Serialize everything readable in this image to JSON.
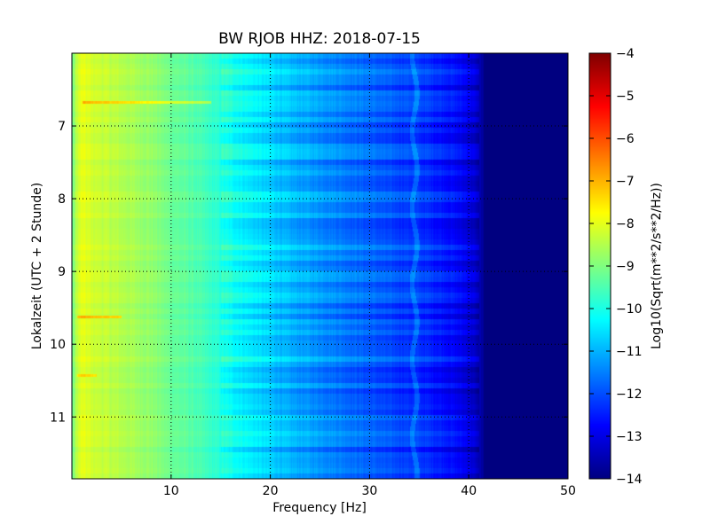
{
  "chart_data": {
    "type": "heatmap",
    "title": "BW RJOB HHZ: 2018-07-15",
    "xlabel": "Frequency [Hz]",
    "ylabel": "Lokalzeit (UTC + 2 Stunde)",
    "xlim": [
      0,
      50
    ],
    "ylim": [
      6.0,
      11.85
    ],
    "y_inverted": true,
    "x_ticks": [
      10,
      20,
      30,
      40,
      50
    ],
    "y_ticks": [
      7,
      8,
      9,
      10,
      11
    ],
    "grid": true,
    "colorbar": {
      "label": "Log10(Sqrt(m**2/s**2/Hz))",
      "range": [
        -14,
        -4
      ],
      "ticks": [
        -4,
        -5,
        -6,
        -7,
        -8,
        -9,
        -10,
        -11,
        -12,
        -13,
        -14
      ],
      "colormap": "jet"
    },
    "spectrum_profile": {
      "frequency_hz": [
        0,
        0.5,
        1,
        2,
        3,
        5,
        8,
        10,
        12,
        15,
        18,
        20,
        22,
        25,
        28,
        30,
        32,
        35,
        38,
        40,
        41,
        42,
        45,
        50
      ],
      "level": [
        -9.2,
        -8.3,
        -8.0,
        -8.2,
        -8.3,
        -8.5,
        -8.8,
        -9.2,
        -9.4,
        -9.9,
        -10.4,
        -10.7,
        -11.0,
        -11.3,
        -11.6,
        -11.8,
        -12.0,
        -12.2,
        -12.6,
        -13.0,
        -13.5,
        -14.0,
        -14.0,
        -14.0
      ]
    },
    "bright_events": [
      {
        "time": 6.67,
        "fmin": 1,
        "fmax": 14,
        "boost": 1.0
      },
      {
        "time": 9.62,
        "fmin": 0.5,
        "fmax": 5,
        "boost": 1.2
      },
      {
        "time": 10.42,
        "fmin": 0.5,
        "fmax": 2.5,
        "boost": 0.8
      }
    ],
    "tonal_line": {
      "frequency_hz": 34.5,
      "boost": 0.5
    }
  }
}
